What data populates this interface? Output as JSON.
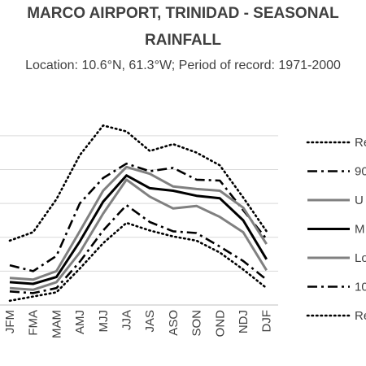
{
  "title_line1": "MARCO AIRPORT, TRINIDAD - SEASONAL",
  "title_line2": "RAINFALL",
  "subtitle": "Location: 10.6°N, 61.3°W; Period of record: 1971-2000",
  "chart_data": {
    "type": "line",
    "categories": [
      "JFM",
      "FMA",
      "MAM",
      "AMJ",
      "MJJ",
      "JJA",
      "JAS",
      "ASO",
      "SON",
      "OND",
      "NDJ",
      "DJF"
    ],
    "legend_placement": "right",
    "grid": true,
    "ylim": [
      0,
      220
    ],
    "series": [
      {
        "name": "Re",
        "style": "dotted",
        "color": "#000000",
        "values": [
          76,
          86,
          125,
          177,
          212,
          205,
          182,
          190,
          180,
          165,
          127,
          87
        ]
      },
      {
        "name": "90",
        "style": "dashdot",
        "color": "#000000",
        "values": [
          47,
          40,
          58,
          120,
          150,
          167,
          158,
          162,
          148,
          147,
          112,
          78
        ]
      },
      {
        "name": "U",
        "style": "solid",
        "color": "#808080",
        "values": [
          32,
          30,
          40,
          87,
          135,
          163,
          155,
          140,
          137,
          135,
          115,
          72
        ]
      },
      {
        "name": "M",
        "style": "solid",
        "color": "#000000",
        "values": [
          27,
          25,
          33,
          75,
          122,
          153,
          138,
          135,
          129,
          126,
          100,
          54
        ]
      },
      {
        "name": "Lo",
        "style": "solid",
        "color": "#808080",
        "values": [
          20,
          18,
          27,
          62,
          108,
          148,
          128,
          114,
          117,
          104,
          86,
          41
        ]
      },
      {
        "name": "10",
        "style": "dashdot",
        "color": "#000000",
        "values": [
          16,
          14,
          20,
          51,
          88,
          118,
          98,
          87,
          85,
          69,
          52,
          30
        ]
      },
      {
        "name": "Re",
        "style": "dotted",
        "color": "#000000",
        "values": [
          5,
          10,
          15,
          43,
          73,
          97,
          88,
          81,
          76,
          62,
          42,
          20
        ]
      }
    ]
  }
}
